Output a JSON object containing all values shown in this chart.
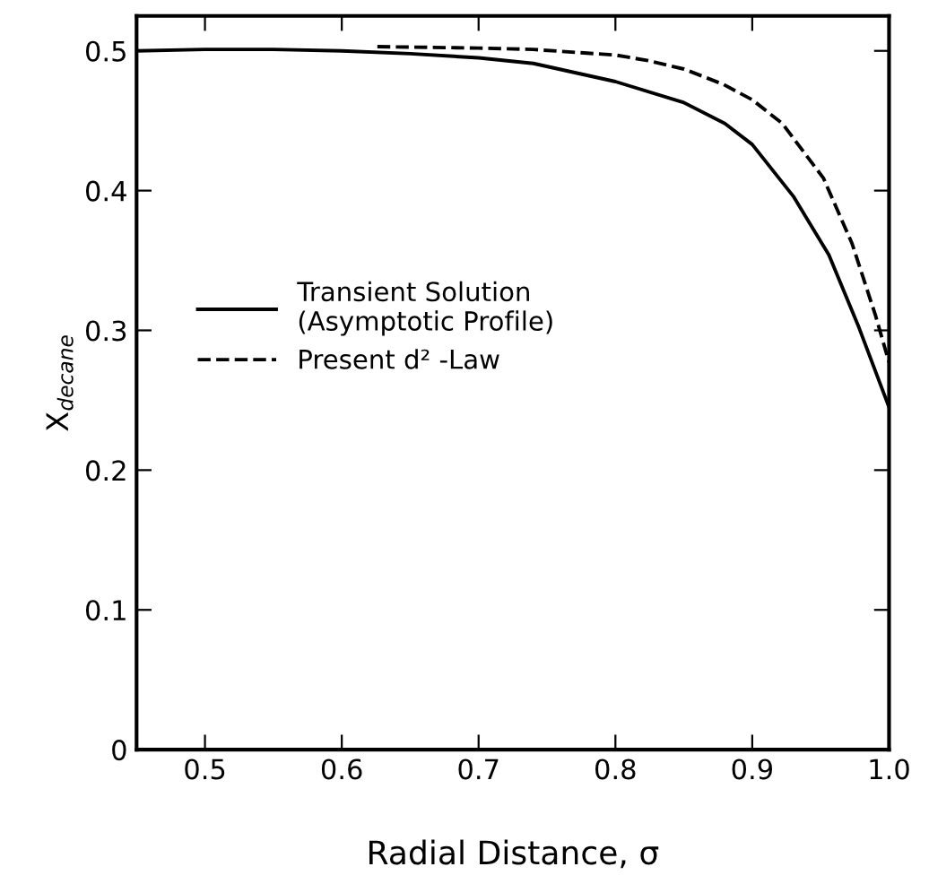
{
  "chart_data": {
    "type": "line",
    "xlabel": "Radial Distance, σ",
    "ylabel": "X$_{decane}$",
    "xlim": [
      0.45,
      1.0
    ],
    "ylim": [
      0,
      0.525
    ],
    "xticks": [
      0.5,
      0.6,
      0.7,
      0.8,
      0.9,
      {
        "value": 1.0,
        "label": "1.0"
      }
    ],
    "yticks": [
      0,
      0.1,
      0.2,
      0.3,
      0.4,
      0.5
    ],
    "grid": false,
    "legend": "left",
    "series": [
      {
        "name": "Transient Solution\n(Asymptotic Profile)",
        "color": "#000000",
        "line_style": "solid",
        "x": [
          0.45,
          0.5,
          0.55,
          0.6,
          0.65,
          0.7,
          0.74,
          0.8,
          0.85,
          0.88,
          0.9,
          0.93,
          0.956,
          0.978,
          1.0
        ],
        "values": [
          0.5,
          0.501,
          0.501,
          0.5,
          0.498,
          0.495,
          0.491,
          0.478,
          0.463,
          0.448,
          0.433,
          0.396,
          0.354,
          0.302,
          0.245
        ]
      },
      {
        "name": "Present d² -Law",
        "color": "#000000",
        "line_style": "dashed",
        "x": [
          0.626,
          0.7,
          0.74,
          0.8,
          0.824,
          0.85,
          0.879,
          0.9,
          0.922,
          0.952,
          0.973,
          0.99,
          1.0
        ],
        "values": [
          0.503,
          0.502,
          0.501,
          0.497,
          0.493,
          0.487,
          0.476,
          0.465,
          0.448,
          0.409,
          0.362,
          0.311,
          0.277
        ]
      }
    ]
  }
}
